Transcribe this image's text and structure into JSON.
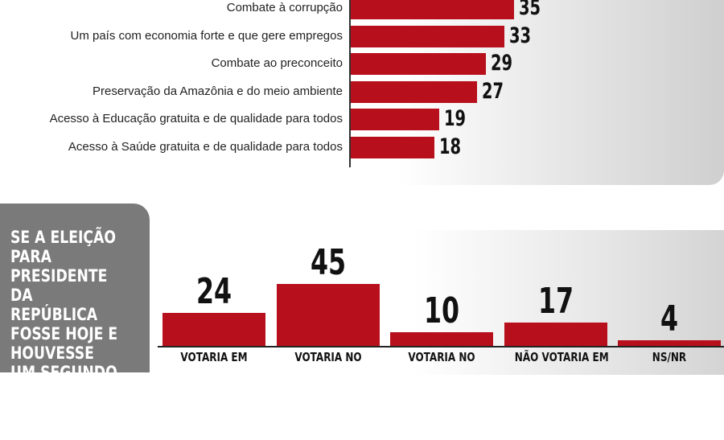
{
  "chart_data": [
    {
      "type": "bar",
      "orientation": "horizontal",
      "categories": [
        "Combate à corrupção",
        "Um país com economia forte e que gere empregos",
        "Combate ao preconceito",
        "Preservação da Amazônia e do meio ambiente",
        "Acesso à Educação gratuita e de qualidade para todos",
        "Acesso à Saúde gratuita e de qualidade para todos"
      ],
      "values": [
        35,
        33,
        29,
        27,
        19,
        18
      ],
      "data_labels": [
        "35",
        "33",
        "29",
        "27",
        "19",
        "18"
      ],
      "bar_color": "#b80f1c"
    },
    {
      "type": "bar",
      "orientation": "vertical",
      "title": "SE A ELEIÇÃO PARA PRESIDENTE DA REPÚBLICA FOSSE HOJE E HOUVESSE UM SEGUNDO TURNO ENTRE JAIR BOLSONARO E",
      "categories": [
        "VOTARIA EM",
        "VOTARIA NO",
        "VOTARIA NO",
        "NÃO VOTARIA EM",
        "NS/NR"
      ],
      "values": [
        24,
        45,
        10,
        17,
        4
      ],
      "data_labels": [
        "24",
        "45",
        "10",
        "17",
        "4"
      ],
      "bar_color": "#b80f1c",
      "side_panel_color": "#7a7a7a"
    }
  ]
}
